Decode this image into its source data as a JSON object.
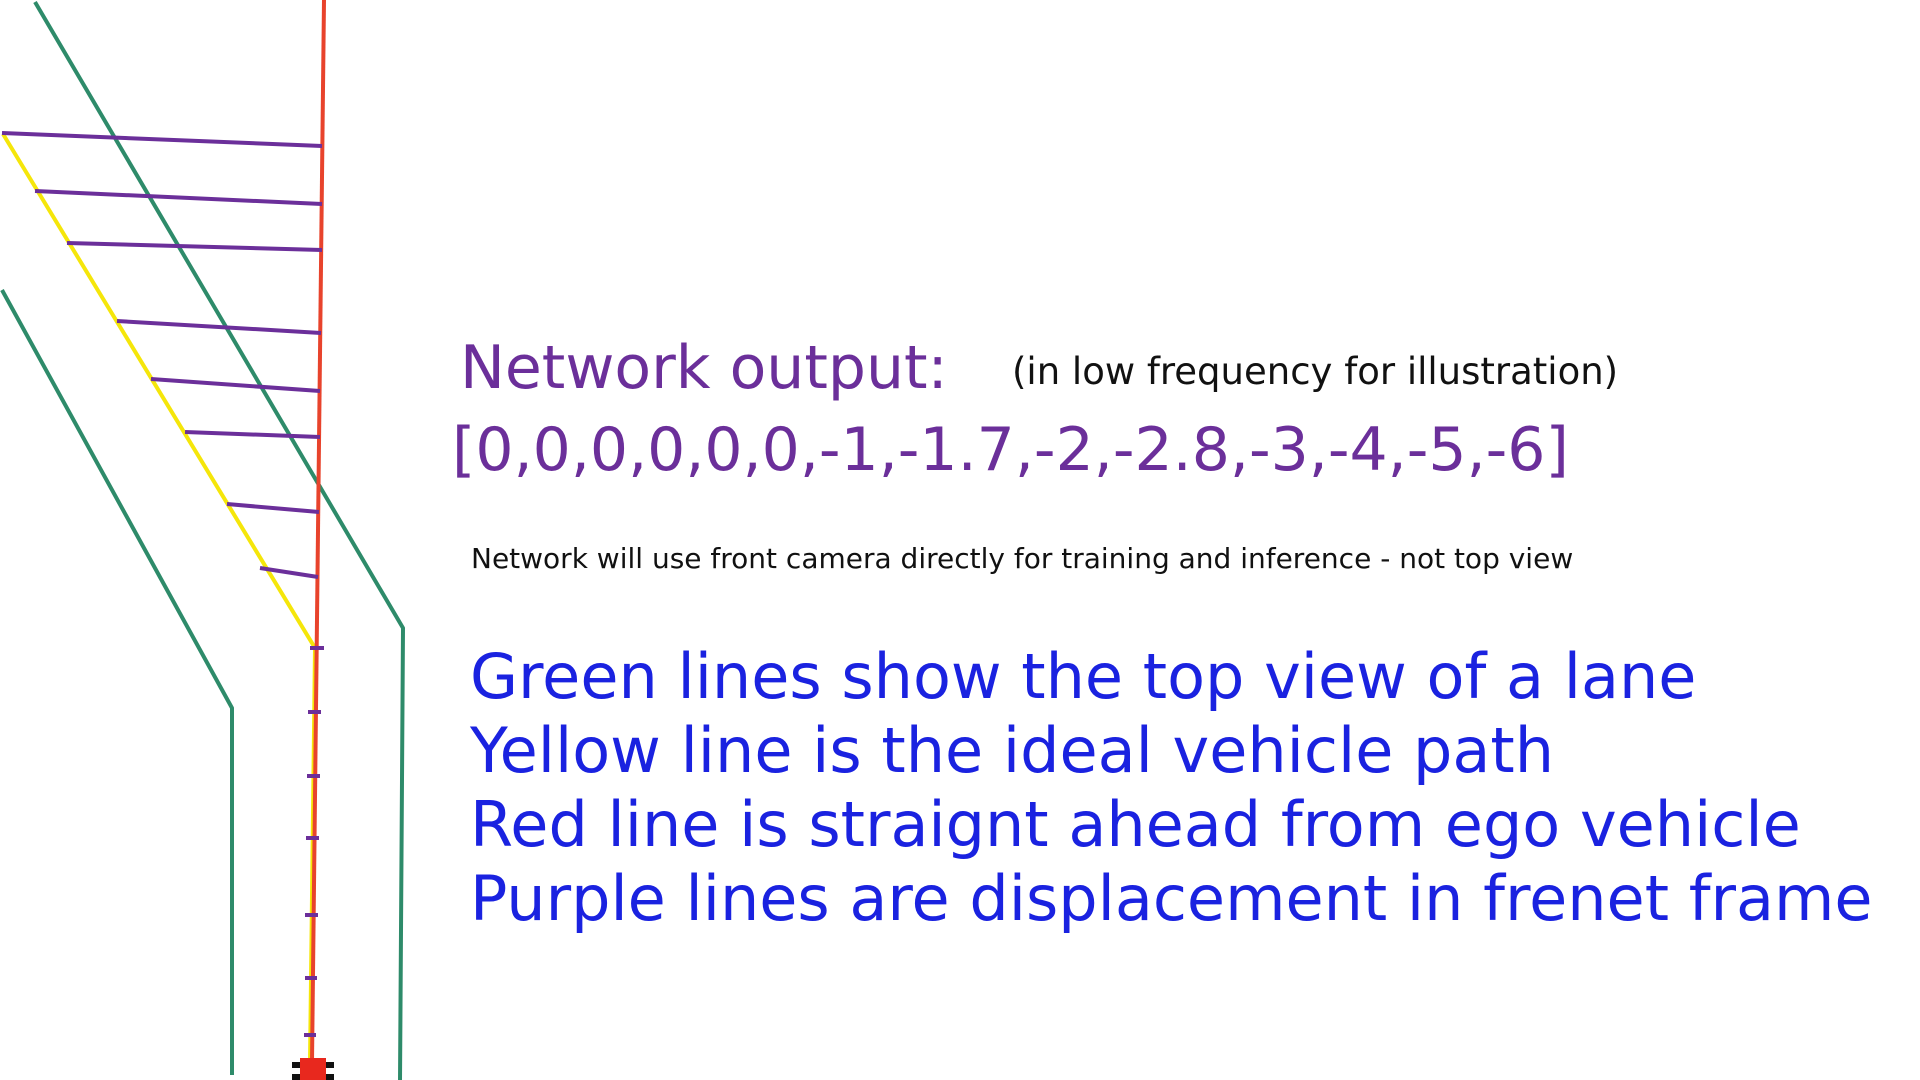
{
  "network_output": {
    "title": "Network output:",
    "note": "(in low frequency for illustration)",
    "values_text": "[0,0,0,0,0,0,-1,-1.7,-2,-2.8,-3,-4,-5,-6]",
    "values": [
      0,
      0,
      0,
      0,
      0,
      0,
      -1,
      -1.7,
      -2,
      -2.8,
      -3,
      -4,
      -5,
      -6
    ]
  },
  "camera_note": "Network will use front camera directly for training and inference - not top view",
  "legend": [
    "Green lines show the top view of a lane",
    "Yellow line is the ideal vehicle path",
    "Red line is straignt ahead from ego vehicle",
    "Purple lines are displacement in frenet frame"
  ],
  "colors": {
    "lane": "#2e8b6a",
    "ideal_path": "#f5e60a",
    "straight_ahead": "#e8432c",
    "displacement": "#6b2f9a",
    "vehicle": "#e8281e",
    "title_text": "#6b2f9a",
    "legend_text": "#1a22e0"
  }
}
